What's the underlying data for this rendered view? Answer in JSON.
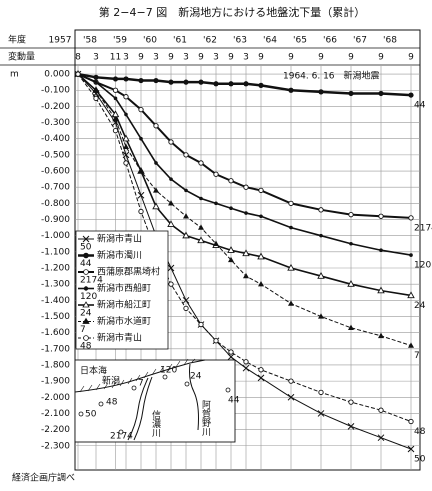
{
  "chart_data": {
    "type": "line",
    "title": "第 2−4−7 図　新潟地方における地盤沈下量（累計）",
    "x_label": "年度",
    "y_label": "変動量",
    "y_unit": "m",
    "source": "経済企画庁調べ",
    "annotation": "1964. 6. 16　新潟地震",
    "xlim": [
      1957.6,
      1968.7
    ],
    "ylim": [
      0.05,
      -2.45
    ],
    "grid": true,
    "year_labels": [
      {
        "value": 1957,
        "label": "1957"
      },
      {
        "value": 1958,
        "label": "'58"
      },
      {
        "value": 1959,
        "label": "'59"
      },
      {
        "value": 1960,
        "label": "'60"
      },
      {
        "value": 1961,
        "label": "'61"
      },
      {
        "value": 1962,
        "label": "'62"
      },
      {
        "value": 1963,
        "label": "'63"
      },
      {
        "value": 1964,
        "label": "'64"
      },
      {
        "value": 1965,
        "label": "'65"
      },
      {
        "value": 1966,
        "label": "'66"
      },
      {
        "value": 1967,
        "label": "'67"
      },
      {
        "value": 1968,
        "label": "'68"
      }
    ],
    "x": [
      1957.6,
      1958.2,
      1958.85,
      1959.2,
      1959.7,
      1960.2,
      1960.7,
      1961.2,
      1961.7,
      1962.2,
      1962.7,
      1963.2,
      1963.7,
      1964.7,
      1965.7,
      1966.7,
      1967.7,
      1968.7
    ],
    "xticks": [
      {
        "value": 1957.6,
        "label": "8"
      },
      {
        "value": 1958.2,
        "label": "3"
      },
      {
        "value": 1958.85,
        "label": "11"
      },
      {
        "value": 1959.2,
        "label": "3"
      },
      {
        "value": 1959.7,
        "label": "9"
      },
      {
        "value": 1960.2,
        "label": "3"
      },
      {
        "value": 1960.7,
        "label": "9"
      },
      {
        "value": 1961.2,
        "label": "3"
      },
      {
        "value": 1961.7,
        "label": "9"
      },
      {
        "value": 1962.2,
        "label": "3"
      },
      {
        "value": 1962.7,
        "label": "9"
      },
      {
        "value": 1963.2,
        "label": "3"
      },
      {
        "value": 1963.7,
        "label": "9"
      },
      {
        "value": 1964.7,
        "label": "9"
      },
      {
        "value": 1965.7,
        "label": "9"
      },
      {
        "value": 1966.7,
        "label": "9"
      },
      {
        "value": 1967.7,
        "label": "9"
      },
      {
        "value": 1968.7,
        "label": "9"
      }
    ],
    "yticks": [
      {
        "value": 0,
        "label": "0.000"
      },
      {
        "value": -0.1,
        "label": "-0.100"
      },
      {
        "value": -0.2,
        "label": "-0.200"
      },
      {
        "value": -0.3,
        "label": "-0.300"
      },
      {
        "value": -0.4,
        "label": "-0.400"
      },
      {
        "value": -0.5,
        "label": "-0.500"
      },
      {
        "value": -0.6,
        "label": "-0.600"
      },
      {
        "value": -0.7,
        "label": "-0.700"
      },
      {
        "value": -0.8,
        "label": "-0.800"
      },
      {
        "value": -0.9,
        "label": "-0.900"
      },
      {
        "value": -1.0,
        "label": "-1.000"
      },
      {
        "value": -1.1,
        "label": "-1.100"
      },
      {
        "value": -1.2,
        "label": "-1.200"
      },
      {
        "value": -1.3,
        "label": "-1.300"
      },
      {
        "value": -1.4,
        "label": "-1.400"
      },
      {
        "value": -1.5,
        "label": "-1.500"
      },
      {
        "value": -1.6,
        "label": "-1.600"
      },
      {
        "value": -1.7,
        "label": "-1.700"
      },
      {
        "value": -1.8,
        "label": "-1.800"
      },
      {
        "value": -1.9,
        "label": "-1.900"
      },
      {
        "value": -2.0,
        "label": "-2.000"
      },
      {
        "value": -2.1,
        "label": "-2.100"
      },
      {
        "value": -2.2,
        "label": "-2.200"
      },
      {
        "value": -2.3,
        "label": "-2.300"
      }
    ],
    "series": [
      {
        "name": "新潟市青山",
        "label": "50",
        "color": "#111",
        "marker": "x",
        "dash": false,
        "line_width": 1,
        "values": [
          0,
          -0.12,
          -0.3,
          -0.5,
          -0.75,
          -1.0,
          -1.2,
          -1.4,
          -1.55,
          -1.65,
          -1.75,
          -1.82,
          -1.88,
          -2.0,
          -2.1,
          -2.18,
          -2.25,
          -2.32
        ]
      },
      {
        "name": "新潟市濁川",
        "label": "44",
        "color": "#111",
        "marker": "dot",
        "dash": false,
        "line_width": 2.5,
        "values": [
          0,
          -0.02,
          -0.03,
          -0.03,
          -0.04,
          -0.04,
          -0.05,
          -0.05,
          -0.05,
          -0.06,
          -0.06,
          -0.06,
          -0.07,
          -0.1,
          -0.11,
          -0.12,
          -0.12,
          -0.13
        ]
      },
      {
        "name": "西蒲原郡黒埼村",
        "label": "2174",
        "color": "#111",
        "marker": "circle",
        "dash": false,
        "line_width": 2,
        "values": [
          0,
          -0.05,
          -0.1,
          -0.14,
          -0.22,
          -0.32,
          -0.42,
          -0.5,
          -0.55,
          -0.62,
          -0.66,
          -0.7,
          -0.72,
          -0.8,
          -0.84,
          -0.87,
          -0.88,
          -0.89
        ]
      },
      {
        "name": "新潟市西船町",
        "label": "120",
        "color": "#111",
        "marker": "smalldot",
        "dash": false,
        "line_width": 1.6,
        "values": [
          0,
          -0.05,
          -0.15,
          -0.25,
          -0.4,
          -0.55,
          -0.65,
          -0.72,
          -0.77,
          -0.8,
          -0.83,
          -0.86,
          -0.88,
          -0.95,
          -1.0,
          -1.05,
          -1.09,
          -1.12
        ]
      },
      {
        "name": "新潟市船江町",
        "label": "24",
        "color": "#111",
        "marker": "triangle",
        "dash": false,
        "line_width": 1.6,
        "values": [
          0,
          -0.1,
          -0.25,
          -0.4,
          -0.6,
          -0.82,
          -0.93,
          -1.0,
          -1.03,
          -1.06,
          -1.09,
          -1.11,
          -1.13,
          -1.2,
          -1.25,
          -1.3,
          -1.34,
          -1.37
        ]
      },
      {
        "name": "新潟市水道町",
        "label": "7",
        "color": "#111",
        "marker": "filled-triangle",
        "dash": true,
        "line_width": 1,
        "values": [
          0,
          -0.1,
          -0.28,
          -0.45,
          -0.6,
          -0.72,
          -0.8,
          -0.88,
          -0.95,
          -1.05,
          -1.15,
          -1.25,
          -1.3,
          -1.42,
          -1.5,
          -1.57,
          -1.62,
          -1.68
        ]
      },
      {
        "name": "新潟市青山",
        "label": "48",
        "color": "#111",
        "marker": "circle",
        "dash": true,
        "line_width": 1,
        "values": [
          0,
          -0.15,
          -0.35,
          -0.55,
          -0.85,
          -1.1,
          -1.3,
          -1.45,
          -1.55,
          -1.65,
          -1.72,
          -1.78,
          -1.83,
          -1.9,
          -1.97,
          -2.03,
          -2.08,
          -2.15
        ]
      }
    ],
    "map": {
      "labels": [
        "日本海",
        "新潟",
        "7",
        "120",
        "24",
        "44",
        "48",
        "50",
        "2174",
        "信濃川",
        "阿賀野川"
      ]
    }
  }
}
